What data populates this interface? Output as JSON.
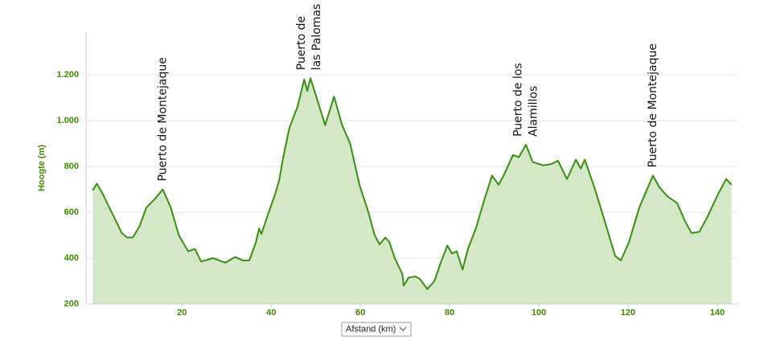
{
  "chart_data": {
    "type": "area",
    "y_label": "Hoogte (m)",
    "x_label": "Afstand (km)",
    "color": "#3a8c12",
    "fill": "#d4e8c8",
    "grid": true,
    "xlim": [
      -1.5,
      144.7
    ],
    "ylim": [
      200,
      1386
    ],
    "xticks": [
      20,
      40,
      60,
      80,
      100,
      120,
      140
    ],
    "yticks": [
      200,
      400,
      600,
      800,
      {
        "value": 1000,
        "label": "1.000"
      },
      {
        "value": 1200,
        "label": "1.200"
      }
    ],
    "x": [
      0,
      0.9,
      2,
      3.5,
      5,
      6.5,
      7.7,
      9,
      10.5,
      12,
      14,
      15.7,
      17.5,
      19.3,
      21.4,
      22.9,
      24.3,
      27,
      29.7,
      31.9,
      33.7,
      35.1,
      36.6,
      37.3,
      37.8,
      39.1,
      40.9,
      41.8,
      42.7,
      44.1,
      45.9,
      47.4,
      48.1,
      48.8,
      50.5,
      52.1,
      54.1,
      55.9,
      57.7,
      59.8,
      61.8,
      63.2,
      64.3,
      65.6,
      66.5,
      67.7,
      69.4,
      69.7,
      70.8,
      72.3,
      73.3,
      75,
      76.6,
      78,
      79.5,
      80.5,
      81.6,
      82.9,
      84.1,
      85.9,
      87.7,
      89.5,
      91,
      92.1,
      94.2,
      95.5,
      97.1,
      98.6,
      100.9,
      102.7,
      104.3,
      106.3,
      108.3,
      109.4,
      110.3,
      112.6,
      114.8,
      117.1,
      118.4,
      120.2,
      122.5,
      123.8,
      125.6,
      127,
      128.8,
      131,
      132.8,
      134.2,
      136,
      137.8,
      140.2,
      142,
      143.2
    ],
    "values": [
      695,
      725,
      690,
      630,
      570,
      510,
      490,
      490,
      540,
      620,
      660,
      700,
      620,
      500,
      430,
      440,
      385,
      400,
      380,
      405,
      390,
      390,
      470,
      530,
      505,
      580,
      680,
      740,
      840,
      970,
      1060,
      1180,
      1130,
      1185,
      1080,
      980,
      1105,
      980,
      900,
      720,
      600,
      500,
      460,
      490,
      470,
      400,
      330,
      280,
      315,
      320,
      310,
      265,
      300,
      380,
      455,
      420,
      430,
      350,
      440,
      530,
      650,
      760,
      720,
      760,
      850,
      840,
      895,
      820,
      805,
      810,
      825,
      745,
      830,
      790,
      830,
      700,
      560,
      410,
      390,
      470,
      620,
      680,
      760,
      710,
      670,
      640,
      560,
      510,
      515,
      580,
      680,
      745,
      720
    ],
    "annotations": [
      {
        "x": 15.7,
        "lines": [
          "Puerto de Montejaque"
        ]
      },
      {
        "x": 48.5,
        "lines": [
          "Puerto de",
          "las Palomas"
        ]
      },
      {
        "x": 97.1,
        "lines": [
          "Puerto de los",
          "Alamillos"
        ]
      },
      {
        "x": 125.6,
        "lines": [
          "Puerto de Montejaque"
        ]
      }
    ]
  }
}
